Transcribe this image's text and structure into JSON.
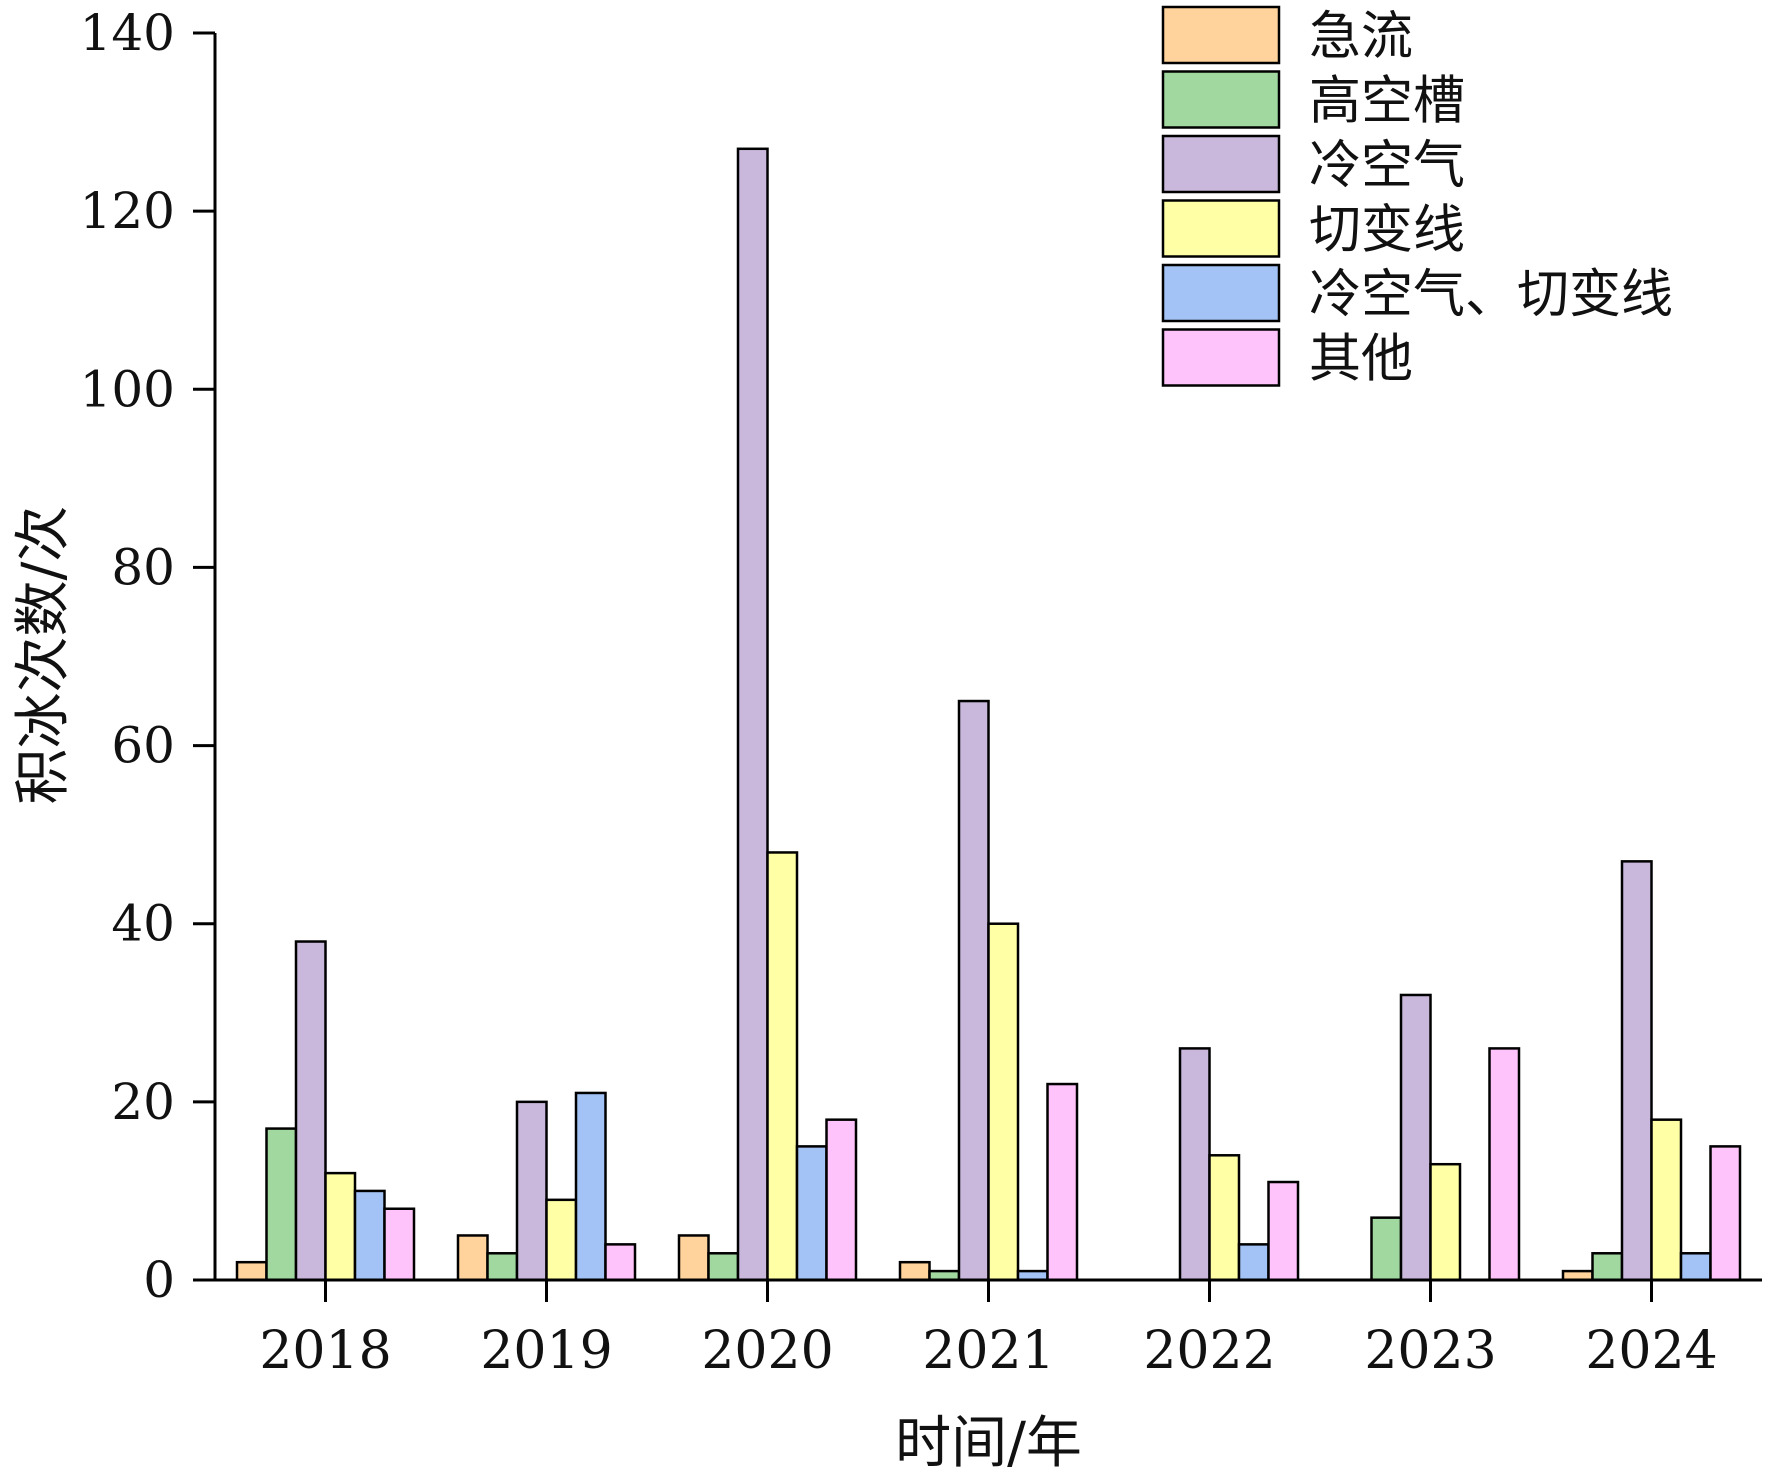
{
  "chart_data": {
    "type": "bar",
    "title": "",
    "xlabel": "时间/年",
    "ylabel": "积冰次数/次",
    "ylim": [
      0,
      140
    ],
    "yticks": [
      0,
      20,
      40,
      60,
      80,
      100,
      120,
      140
    ],
    "grid": false,
    "legend_position": "top-right",
    "categories": [
      "2018",
      "2019",
      "2020",
      "2021",
      "2022",
      "2023",
      "2024"
    ],
    "series": [
      {
        "name": "急流",
        "color": "#FFD39B",
        "values": [
          2,
          5,
          5,
          2,
          0,
          0,
          1
        ]
      },
      {
        "name": "高空槽",
        "color": "#A0D8A0",
        "values": [
          17,
          3,
          3,
          1,
          0,
          7,
          3
        ]
      },
      {
        "name": "冷空气",
        "color": "#C9B8DB",
        "values": [
          38,
          20,
          127,
          65,
          26,
          32,
          47
        ]
      },
      {
        "name": "切变线",
        "color": "#FFFFA6",
        "values": [
          12,
          9,
          48,
          40,
          14,
          13,
          18
        ]
      },
      {
        "name": "冷空气、切变线",
        "color": "#A3C2F6",
        "values": [
          10,
          21,
          15,
          1,
          4,
          0,
          3
        ]
      },
      {
        "name": "其他",
        "color": "#FFC3FB",
        "values": [
          8,
          4,
          18,
          22,
          11,
          26,
          15
        ]
      }
    ]
  }
}
